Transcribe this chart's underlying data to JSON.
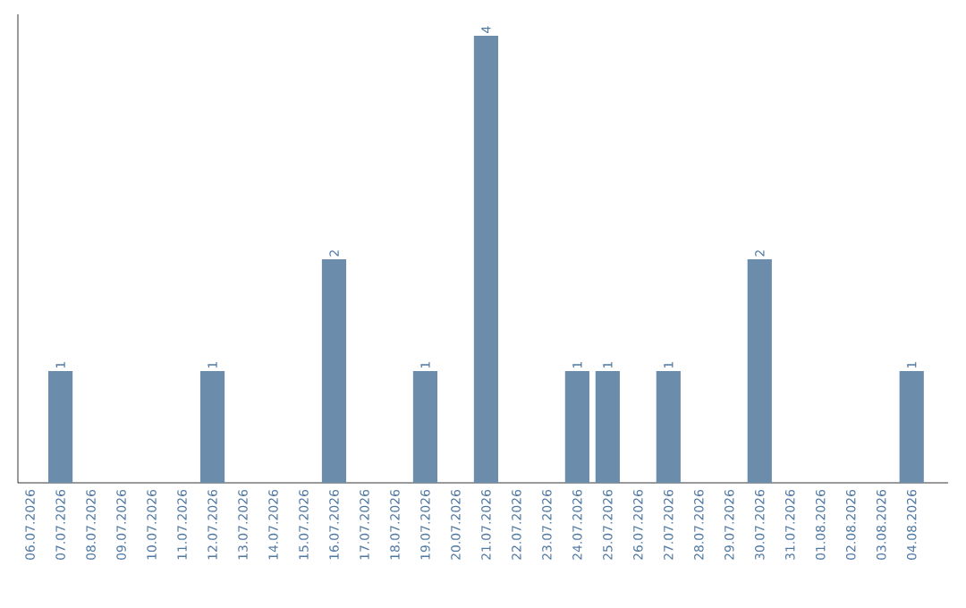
{
  "chart_data": {
    "type": "bar",
    "categories": [
      "06.07.2026",
      "07.07.2026",
      "08.07.2026",
      "09.07.2026",
      "10.07.2026",
      "11.07.2026",
      "12.07.2026",
      "13.07.2026",
      "14.07.2026",
      "15.07.2026",
      "16.07.2026",
      "17.07.2026",
      "18.07.2026",
      "19.07.2026",
      "20.07.2026",
      "21.07.2026",
      "22.07.2026",
      "23.07.2026",
      "24.07.2026",
      "25.07.2026",
      "26.07.2026",
      "27.07.2026",
      "28.07.2026",
      "29.07.2026",
      "30.07.2026",
      "31.07.2026",
      "01.08.2026",
      "02.08.2026",
      "03.08.2026",
      "04.08.2026"
    ],
    "values": [
      0,
      1,
      0,
      0,
      0,
      0,
      1,
      0,
      0,
      0,
      2,
      0,
      0,
      1,
      0,
      4,
      0,
      0,
      1,
      1,
      0,
      1,
      0,
      0,
      2,
      0,
      0,
      0,
      0,
      1
    ],
    "value_labels": [
      null,
      "1",
      null,
      null,
      null,
      null,
      "1",
      null,
      null,
      null,
      "2",
      null,
      null,
      "1",
      null,
      "4",
      null,
      null,
      "1",
      "1",
      null,
      "1",
      null,
      null,
      "2",
      null,
      null,
      null,
      null,
      "1"
    ],
    "color": "#6b8cab",
    "tick_labels": "x"
  }
}
